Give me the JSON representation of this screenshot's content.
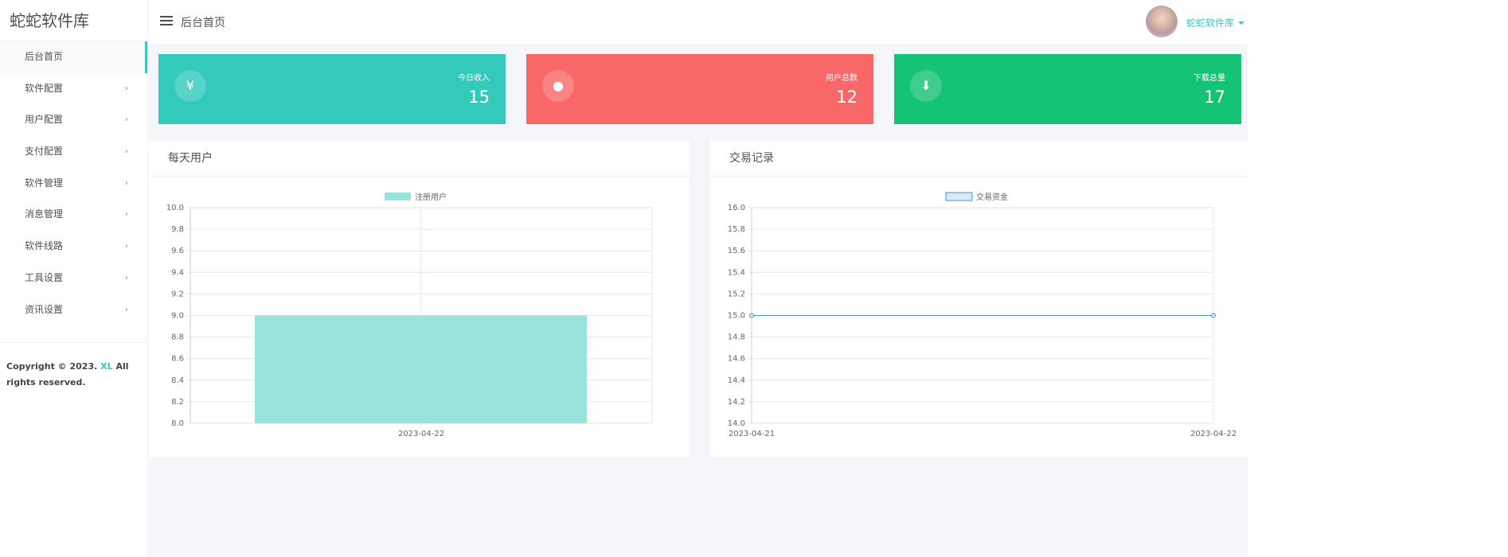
{
  "sidebar": {
    "brand": "蛇蛇软件库",
    "items": [
      {
        "label": "后台首页",
        "active": true
      },
      {
        "label": "软件配置"
      },
      {
        "label": "用户配置"
      },
      {
        "label": "支付配置"
      },
      {
        "label": "软件管理"
      },
      {
        "label": "消息管理"
      },
      {
        "label": "软件线路"
      },
      {
        "label": "工具设置"
      },
      {
        "label": "资讯设置"
      }
    ],
    "chevron": "›",
    "copyright_pre": "Copyright © 2023. ",
    "copyright_link": "XL",
    "copyright_post": " All rights reserved."
  },
  "header": {
    "title": "后台首页",
    "username": "蛇蛇软件库",
    "menu_icon": "hamburger-icon"
  },
  "cards": [
    {
      "label": "今日收入",
      "value": "15",
      "icon": "¥",
      "icon_name": "yen-icon",
      "color": "#33cabb"
    },
    {
      "label": "用户总数",
      "value": "12",
      "icon": "●",
      "icon_name": "user-icon",
      "color": "#f96868"
    },
    {
      "label": "下载总量",
      "value": "17",
      "icon": "⬇",
      "icon_name": "download-icon",
      "color": "#15c377"
    }
  ],
  "panels": {
    "daily_users": "每天用户",
    "transactions": "交易记录"
  },
  "chart_data": [
    {
      "type": "bar",
      "legend": "注册用户",
      "categories": [
        "2023-04-22"
      ],
      "values": [
        9
      ],
      "ylim": [
        8,
        10
      ],
      "yticks": [
        "10.0",
        "9.8",
        "9.6",
        "9.4",
        "9.2",
        "9.0",
        "8.8",
        "8.6",
        "8.4",
        "8.2",
        "8.0"
      ],
      "color": "#98e3db",
      "legend_position": "top",
      "grid": true
    },
    {
      "type": "line",
      "legend": "交易资金",
      "x": [
        "2023-04-21",
        "2023-04-22"
      ],
      "values": [
        15,
        15
      ],
      "ylim": [
        14,
        16
      ],
      "yticks": [
        "16.0",
        "15.8",
        "15.6",
        "15.4",
        "15.2",
        "15.0",
        "14.8",
        "14.6",
        "14.4",
        "14.2",
        "14.0"
      ],
      "color": "#4a90d9",
      "legend_position": "top",
      "grid": true
    }
  ]
}
